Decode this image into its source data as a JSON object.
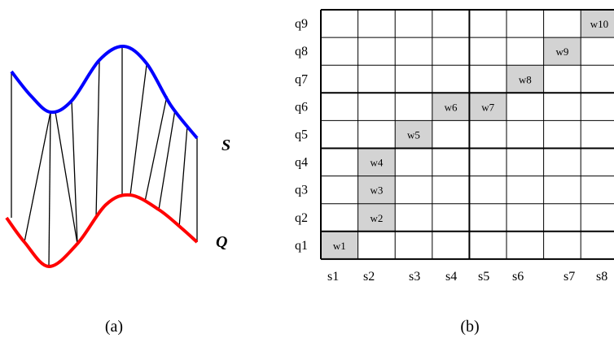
{
  "panel_a": {
    "caption": "(a)",
    "label_top": "S",
    "label_bottom": "Q",
    "curve_top_color": "#0000ff",
    "curve_bottom_color": "#ff0000",
    "line_color": "#000000"
  },
  "panel_b": {
    "caption": "(b)",
    "row_labels": [
      "q1",
      "q2",
      "q3",
      "q4",
      "q5",
      "q6",
      "q7",
      "q8",
      "q9"
    ],
    "col_labels": [
      "s1",
      "s2",
      "s3",
      "s4",
      "s5",
      "s6",
      "s7",
      "s8"
    ],
    "cell_fill": "#d3d3d3",
    "path_cells": [
      {
        "label": "w1",
        "row": 1,
        "col": 1
      },
      {
        "label": "w2",
        "row": 2,
        "col": 2
      },
      {
        "label": "w3",
        "row": 3,
        "col": 2
      },
      {
        "label": "w4",
        "row": 4,
        "col": 2
      },
      {
        "label": "w5",
        "row": 5,
        "col": 3
      },
      {
        "label": "w6",
        "row": 6,
        "col": 4
      },
      {
        "label": "w7",
        "row": 6,
        "col": 5
      },
      {
        "label": "w8",
        "row": 7,
        "col": 6
      },
      {
        "label": "w9",
        "row": 8,
        "col": 7
      },
      {
        "label": "w10",
        "row": 9,
        "col": 8
      }
    ]
  }
}
